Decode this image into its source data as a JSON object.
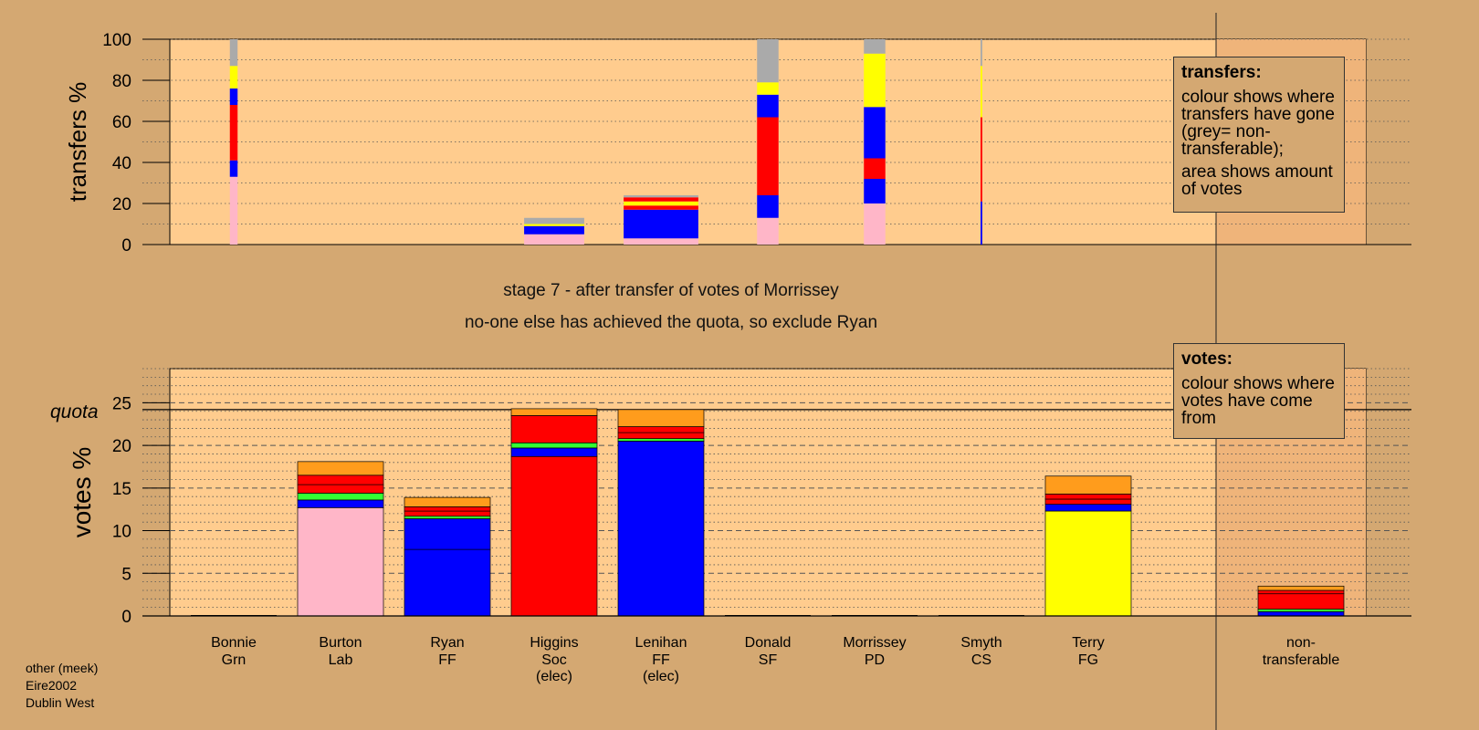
{
  "chart_data": [
    {
      "type": "bar",
      "stacked": true,
      "ylabel": "transfers %",
      "ylim": [
        0,
        100
      ],
      "yticks": [
        0,
        20,
        40,
        60,
        80,
        100
      ],
      "grid": "dotted horizontal",
      "categories": [
        "Bonnie",
        "Burton",
        "Ryan",
        "Higgins",
        "Lenihan",
        "Donald",
        "Morrissey",
        "Smyth",
        "Terry"
      ],
      "bar_width_units": [
        0.09,
        0,
        0,
        0.7,
        0.87,
        0.25,
        0.25,
        0.02,
        0
      ],
      "series": [
        {
          "name": "",
          "color": "#FFB6C8",
          "values": [
            33,
            0,
            0,
            5,
            3,
            13,
            20,
            0,
            0
          ]
        },
        {
          "name": "",
          "color": "#0000FF",
          "values": [
            8,
            0,
            0,
            4,
            14,
            11,
            12,
            21,
            0
          ]
        },
        {
          "name": "",
          "color": "#FF0000",
          "values": [
            27,
            0,
            0,
            0,
            2,
            38,
            10,
            41,
            0
          ]
        },
        {
          "name": "",
          "color": "#0000FF",
          "values": [
            8,
            0,
            0,
            0,
            0,
            11,
            25,
            0,
            0
          ]
        },
        {
          "name": "",
          "color": "#FFFF00",
          "values": [
            11,
            0,
            0,
            1,
            2,
            6,
            26,
            25,
            0
          ]
        },
        {
          "name": "",
          "color": "#FF0000",
          "values": [
            0,
            0,
            0,
            0,
            2,
            0,
            0,
            0,
            0
          ]
        },
        {
          "name": "",
          "color": "#AAAAAA",
          "values": [
            13,
            0,
            0,
            3,
            1,
            21,
            7,
            13,
            0
          ]
        }
      ],
      "legend": {
        "title": "transfers:",
        "lines": [
          "colour shows where transfers have gone (grey= non-transferable);",
          "area shows amount of votes"
        ]
      }
    },
    {
      "type": "bar",
      "stacked": true,
      "ylabel": "votes %",
      "ylim": [
        0,
        29
      ],
      "yticks": [
        0,
        5,
        10,
        15,
        20,
        25
      ],
      "quota": 24.2,
      "quota_label": "quota",
      "grid": "dashed horizontal",
      "categories": [
        {
          "name": "Bonnie",
          "party": "Grn",
          "note": ""
        },
        {
          "name": "Burton",
          "party": "Lab",
          "note": ""
        },
        {
          "name": "Ryan",
          "party": "FF",
          "note": ""
        },
        {
          "name": "Higgins",
          "party": "Soc",
          "note": "(elec)"
        },
        {
          "name": "Lenihan",
          "party": "FF",
          "note": "(elec)"
        },
        {
          "name": "Donald",
          "party": "SF",
          "note": ""
        },
        {
          "name": "Morrissey",
          "party": "PD",
          "note": ""
        },
        {
          "name": "Smyth",
          "party": "CS",
          "note": ""
        },
        {
          "name": "Terry",
          "party": "FG",
          "note": ""
        },
        {
          "name": "non-",
          "party": "transferable",
          "note": ""
        }
      ],
      "bars": [
        [],
        [
          {
            "color": "#FFB6C8",
            "value": 12.7
          },
          {
            "color": "#0000FF",
            "value": 0.9
          },
          {
            "color": "#33FF33",
            "value": 0.8
          },
          {
            "color": "#FF0000",
            "value": 1.0
          },
          {
            "color": "#FF0000",
            "value": 1.1
          },
          {
            "color": "#FF9C1C",
            "value": 1.6
          }
        ],
        [
          {
            "color": "#0000FF",
            "value": 7.8
          },
          {
            "color": "#0000FF",
            "value": 3.6
          },
          {
            "color": "#33FF33",
            "value": 0.3
          },
          {
            "color": "#FF0000",
            "value": 0.6
          },
          {
            "color": "#FF0000",
            "value": 0.5
          },
          {
            "color": "#FF9C1C",
            "value": 1.1
          }
        ],
        [
          {
            "color": "#FF0000",
            "value": 18.7
          },
          {
            "color": "#0000FF",
            "value": 1.0
          },
          {
            "color": "#33FF33",
            "value": 0.6
          },
          {
            "color": "#FF0000",
            "value": 3.2
          },
          {
            "color": "#FF9C1C",
            "value": 0.8
          }
        ],
        [
          {
            "color": "#0000FF",
            "value": 20.5
          },
          {
            "color": "#33FF33",
            "value": 0.3
          },
          {
            "color": "#FF0000",
            "value": 0.7
          },
          {
            "color": "#FF0000",
            "value": 0.7
          },
          {
            "color": "#FF9C1C",
            "value": 2.0
          }
        ],
        [],
        [],
        [],
        [
          {
            "color": "#FFFF00",
            "value": 12.3
          },
          {
            "color": "#0000FF",
            "value": 0.8
          },
          {
            "color": "#FF0000",
            "value": 0.6
          },
          {
            "color": "#FF0000",
            "value": 0.6
          },
          {
            "color": "#FF9C1C",
            "value": 2.1
          }
        ],
        [
          {
            "color": "#0000FF",
            "value": 0.5
          },
          {
            "color": "#33FF33",
            "value": 0.3
          },
          {
            "color": "#FF0000",
            "value": 1.8
          },
          {
            "color": "#FF0000",
            "value": 0.4
          },
          {
            "color": "#FF9C1C",
            "value": 0.5
          }
        ]
      ],
      "legend": {
        "title": "votes:",
        "lines": [
          "colour shows where votes have come from"
        ]
      }
    }
  ],
  "stage_title": "stage 7 - after transfer of votes of Morrissey",
  "stage_subtitle": "no-one else has achieved the quota, so exclude Ryan",
  "footer": {
    "line1": "other (meek)",
    "line2": "Eire2002",
    "line3": "Dublin West"
  },
  "colors": {
    "background": "#D4A872",
    "plot_area": "#FFCC8E",
    "plot_area_shade": "#EFB47A"
  }
}
